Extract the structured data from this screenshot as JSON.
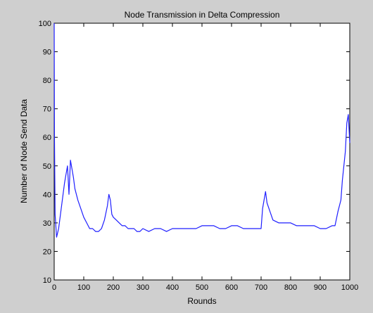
{
  "window": {
    "background": "#cfcfcf"
  },
  "chart_data": {
    "type": "line",
    "title": "Node Transmission in Delta Compression",
    "xlabel": "Rounds",
    "ylabel": "Number of Node Send Data",
    "xlim": [
      0,
      1000
    ],
    "ylim": [
      10,
      100
    ],
    "xticks": [
      0,
      100,
      200,
      300,
      400,
      500,
      600,
      700,
      800,
      900,
      1000
    ],
    "yticks": [
      10,
      20,
      30,
      40,
      50,
      60,
      70,
      80,
      90,
      100
    ],
    "grid": false,
    "legend": "none",
    "series_color": "#1f1fff",
    "series": [
      {
        "x": [
          0,
          1,
          3,
          8,
          15,
          25,
          35,
          45,
          50,
          55,
          60,
          65,
          70,
          80,
          90,
          100,
          110,
          120,
          130,
          140,
          150,
          160,
          170,
          180,
          185,
          190,
          195,
          200,
          210,
          220,
          230,
          240,
          250,
          260,
          270,
          280,
          290,
          300,
          320,
          340,
          360,
          380,
          400,
          420,
          440,
          460,
          480,
          500,
          520,
          540,
          560,
          580,
          600,
          620,
          640,
          660,
          680,
          700,
          705,
          710,
          715,
          720,
          730,
          740,
          760,
          780,
          800,
          820,
          840,
          860,
          880,
          900,
          920,
          940,
          950,
          960,
          970,
          975,
          980,
          985,
          990,
          995,
          1000
        ],
        "y": [
          100,
          60,
          33,
          25,
          28,
          36,
          44,
          50,
          40,
          52,
          49,
          46,
          42,
          38,
          35,
          32,
          30,
          28,
          28,
          27,
          27,
          28,
          31,
          36,
          40,
          38,
          33,
          32,
          31,
          30,
          29,
          29,
          28,
          28,
          28,
          27,
          27,
          28,
          27,
          28,
          28,
          27,
          28,
          28,
          28,
          28,
          28,
          29,
          29,
          29,
          28,
          28,
          29,
          29,
          28,
          28,
          28,
          28,
          35,
          38,
          41,
          37,
          34,
          31,
          30,
          30,
          30,
          29,
          29,
          29,
          29,
          28,
          28,
          29,
          29,
          34,
          38,
          45,
          50,
          55,
          65,
          68,
          58
        ]
      }
    ]
  }
}
